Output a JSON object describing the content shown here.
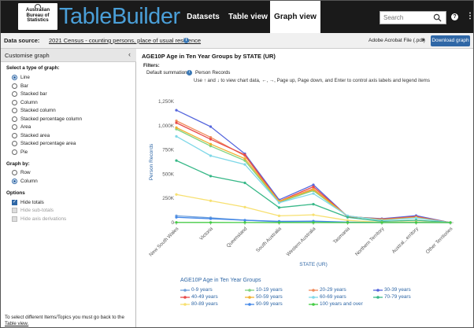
{
  "header": {
    "logo_text": "Australian Bureau of Statistics",
    "brand": "TableBuilder",
    "tabs": [
      {
        "label": "Datasets"
      },
      {
        "label": "Table view"
      },
      {
        "label": "Graph view",
        "active": true
      }
    ],
    "search_placeholder": "Search"
  },
  "source_bar": {
    "label": "Data source:",
    "value": "2021 Census - counting persons, place of usual residence",
    "format_select": "Adobe Acrobat File (.pdf)",
    "download_label": "Download graph"
  },
  "sidebar": {
    "title": "Customise graph",
    "graph_type_heading": "Select a type of graph:",
    "graph_types": [
      {
        "label": "Line",
        "selected": true
      },
      {
        "label": "Bar",
        "selected": false
      },
      {
        "label": "Stacked bar",
        "selected": false
      },
      {
        "label": "Column",
        "selected": false
      },
      {
        "label": "Stacked column",
        "selected": false
      },
      {
        "label": "Stacked percentage column",
        "selected": false
      },
      {
        "label": "Area",
        "selected": false
      },
      {
        "label": "Stacked area",
        "selected": false
      },
      {
        "label": "Stacked percentage area",
        "selected": false
      },
      {
        "label": "Pie",
        "selected": false
      }
    ],
    "graph_by_heading": "Graph by:",
    "graph_by": [
      {
        "label": "Row",
        "selected": false
      },
      {
        "label": "Column",
        "selected": true
      }
    ],
    "options_heading": "Options",
    "options": [
      {
        "label": "Hide totals",
        "checked": true,
        "disabled": false
      },
      {
        "label": "Hide sub-totals",
        "checked": false,
        "disabled": true
      },
      {
        "label": "Hide axis derivations",
        "checked": false,
        "disabled": true
      }
    ],
    "note": "To select different Items/Topics you must go back to the",
    "note_link": "Table view."
  },
  "main": {
    "graph_title": "AGE10P Age in Ten Year Groups by STATE (UR)",
    "filters_label": "Filters:",
    "filter_key": "Default summation",
    "filter_value": "Person Records",
    "instructions": "Use ↑ and ↓ to view chart data, ←, →, Page up, Page down, and Enter to control axis labels and legend items"
  },
  "chart_data": {
    "type": "line",
    "xlabel": "STATE (UR)",
    "ylabel": "Person Records",
    "ylim": [
      0,
      1250000
    ],
    "y_ticks": [
      "0",
      "250K",
      "500K",
      "750K",
      "1,000K",
      "1,250K"
    ],
    "categories": [
      "New South Wales",
      "Victoria",
      "Queensland",
      "South Australia",
      "Western Australia",
      "Tasmania",
      "Northern Territory",
      "Austral...erritory",
      "Other Territories"
    ],
    "legend_title": "AGE10P Age in Ten Year Groups",
    "series": [
      {
        "name": "0-9 years",
        "color": "#6fa0dc",
        "values": [
          70000,
          50000,
          25000,
          8000,
          12000,
          2000,
          2000,
          3000,
          0
        ]
      },
      {
        "name": "10-19 years",
        "color": "#7ed37e",
        "values": [
          965000,
          790000,
          640000,
          210000,
          330000,
          65000,
          32000,
          55000,
          0
        ]
      },
      {
        "name": "20-29 years",
        "color": "#f08a5a",
        "values": [
          1050000,
          880000,
          690000,
          215000,
          350000,
          62000,
          38000,
          62000,
          0
        ]
      },
      {
        "name": "30-39 years",
        "color": "#5566dd",
        "values": [
          1160000,
          990000,
          710000,
          235000,
          390000,
          62000,
          40000,
          72000,
          0
        ]
      },
      {
        "name": "40-49 years",
        "color": "#e84a4a",
        "values": [
          1030000,
          860000,
          700000,
          220000,
          370000,
          62000,
          35000,
          62000,
          0
        ]
      },
      {
        "name": "50-59 years",
        "color": "#f0b030",
        "values": [
          980000,
          810000,
          660000,
          220000,
          340000,
          68000,
          30000,
          55000,
          0
        ]
      },
      {
        "name": "60-69 years",
        "color": "#7fd8e8",
        "values": [
          890000,
          690000,
          600000,
          205000,
          300000,
          70000,
          23000,
          48000,
          0
        ]
      },
      {
        "name": "70-79 years",
        "color": "#38b888",
        "values": [
          640000,
          480000,
          410000,
          155000,
          190000,
          55000,
          12000,
          25000,
          0
        ]
      },
      {
        "name": "80-89 years",
        "color": "#f7e070",
        "values": [
          290000,
          225000,
          160000,
          70000,
          80000,
          23000,
          3000,
          8000,
          0
        ]
      },
      {
        "name": "90-99 years",
        "color": "#4488e8",
        "values": [
          55000,
          40000,
          25000,
          13000,
          15000,
          5000,
          500,
          1500,
          0
        ]
      },
      {
        "name": "100 years and over",
        "color": "#44cc44",
        "values": [
          2000,
          1500,
          1000,
          500,
          500,
          200,
          0,
          0,
          0
        ]
      }
    ],
    "legend_placement": "bottom",
    "grid": false
  }
}
